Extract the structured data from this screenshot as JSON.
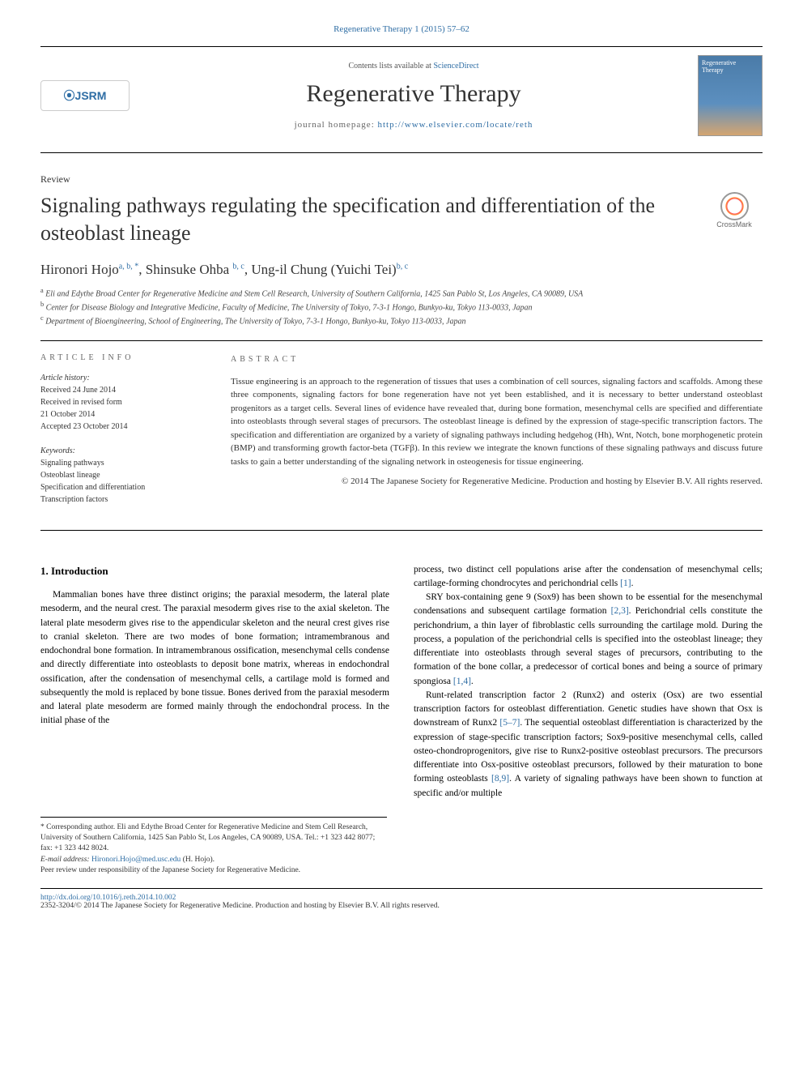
{
  "citation": "Regenerative Therapy 1 (2015) 57–62",
  "header": {
    "contents_prefix": "Contents lists available at ",
    "contents_link": "ScienceDirect",
    "journal_name": "Regenerative Therapy",
    "homepage_prefix": "journal homepage: ",
    "homepage_url": "http://www.elsevier.com/locate/reth",
    "publisher_logo": "⦿JSRM",
    "cover_label": "Regenerative Therapy"
  },
  "article": {
    "type": "Review",
    "title": "Signaling pathways regulating the specification and differentiation of the osteoblast lineage",
    "crossmark_label": "CrossMark"
  },
  "authors": "Hironori Hojo",
  "author1_sup": "a, b, *",
  "author2": ", Shinsuke Ohba ",
  "author2_sup": "b, c",
  "author3": ", Ung-il Chung (Yuichi Tei)",
  "author3_sup": "b, c",
  "affiliations": {
    "a": "Eli and Edythe Broad Center for Regenerative Medicine and Stem Cell Research, University of Southern California, 1425 San Pablo St, Los Angeles, CA 90089, USA",
    "b": "Center for Disease Biology and Integrative Medicine, Faculty of Medicine, The University of Tokyo, 7-3-1 Hongo, Bunkyo-ku, Tokyo 113-0033, Japan",
    "c": "Department of Bioengineering, School of Engineering, The University of Tokyo, 7-3-1 Hongo, Bunkyo-ku, Tokyo 113-0033, Japan"
  },
  "info": {
    "label": "ARTICLE INFO",
    "history_head": "Article history:",
    "received": "Received 24 June 2014",
    "revised1": "Received in revised form",
    "revised2": "21 October 2014",
    "accepted": "Accepted 23 October 2014",
    "keywords_head": "Keywords:",
    "kw1": "Signaling pathways",
    "kw2": "Osteoblast lineage",
    "kw3": "Specification and differentiation",
    "kw4": "Transcription factors"
  },
  "abstract": {
    "label": "ABSTRACT",
    "text": "Tissue engineering is an approach to the regeneration of tissues that uses a combination of cell sources, signaling factors and scaffolds. Among these three components, signaling factors for bone regeneration have not yet been established, and it is necessary to better understand osteoblast progenitors as a target cells. Several lines of evidence have revealed that, during bone formation, mesenchymal cells are specified and differentiate into osteoblasts through several stages of precursors. The osteoblast lineage is defined by the expression of stage-specific transcription factors. The specification and differentiation are organized by a variety of signaling pathways including hedgehog (Hh), Wnt, Notch, bone morphogenetic protein (BMP) and transforming growth factor-beta (TGFβ). In this review we integrate the known functions of these signaling pathways and discuss future tasks to gain a better understanding of the signaling network in osteogenesis for tissue engineering.",
    "copyright": "© 2014 The Japanese Society for Regenerative Medicine. Production and hosting by Elsevier B.V. All rights reserved."
  },
  "body": {
    "section_title": "1. Introduction",
    "col1_p1": "Mammalian bones have three distinct origins; the paraxial mesoderm, the lateral plate mesoderm, and the neural crest. The paraxial mesoderm gives rise to the axial skeleton. The lateral plate mesoderm gives rise to the appendicular skeleton and the neural crest gives rise to cranial skeleton. There are two modes of bone formation; intramembranous and endochondral bone formation. In intramembranous ossification, mesenchymal cells condense and directly differentiate into osteoblasts to deposit bone matrix, whereas in endochondral ossification, after the condensation of mesenchymal cells, a cartilage mold is formed and subsequently the mold is replaced by bone tissue. Bones derived from the paraxial mesoderm and lateral plate mesoderm are formed mainly through the endochondral process. In the initial phase of the",
    "col2_p1_pre": "process, two distinct cell populations arise after the condensation of mesenchymal cells; cartilage-forming chondrocytes and perichondrial cells ",
    "col2_ref1": "[1]",
    "col2_p1_post": ".",
    "col2_p2_pre": "SRY box-containing gene 9 (Sox9) has been shown to be essential for the mesenchymal condensations and subsequent cartilage formation ",
    "col2_ref2": "[2,3]",
    "col2_p2_mid": ". Perichondrial cells constitute the perichondrium, a thin layer of fibroblastic cells surrounding the cartilage mold. During the process, a population of the perichondrial cells is specified into the osteoblast lineage; they differentiate into osteoblasts through several stages of precursors, contributing to the formation of the bone collar, a predecessor of cortical bones and being a source of primary spongiosa ",
    "col2_ref3": "[1,4]",
    "col2_p2_post": ".",
    "col2_p3_pre": "Runt-related transcription factor 2 (Runx2) and osterix (Osx) are two essential transcription factors for osteoblast differentiation. Genetic studies have shown that Osx is downstream of Runx2 ",
    "col2_ref4": "[5–7]",
    "col2_p3_mid": ". The sequential osteoblast differentiation is characterized by the expression of stage-specific transcription factors; Sox9-positive mesenchymal cells, called osteo-chondroprogenitors, give rise to Runx2-positive osteoblast precursors. The precursors differentiate into Osx-positive osteoblast precursors, followed by their maturation to bone forming osteoblasts ",
    "col2_ref5": "[8,9]",
    "col2_p3_post": ". A variety of signaling pathways have been shown to function at specific and/or multiple"
  },
  "footnotes": {
    "corr": "* Corresponding author. Eli and Edythe Broad Center for Regenerative Medicine and Stem Cell Research, University of Southern California, 1425 San Pablo St, Los Angeles, CA 90089, USA. Tel.: +1 323 442 8077; fax: +1 323 442 8024.",
    "email_label": "E-mail address: ",
    "email": "Hironori.Hojo@med.usc.edu",
    "email_who": " (H. Hojo).",
    "peer": "Peer review under responsibility of the Japanese Society for Regenerative Medicine."
  },
  "footer": {
    "doi": "http://dx.doi.org/10.1016/j.reth.2014.10.002",
    "issn_line": "2352-3204/© 2014 The Japanese Society for Regenerative Medicine. Production and hosting by Elsevier B.V. All rights reserved."
  }
}
